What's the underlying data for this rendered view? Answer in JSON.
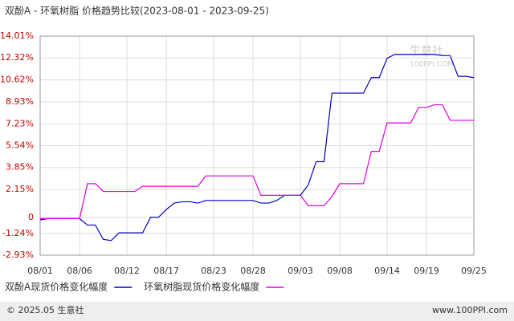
{
  "chart_data": {
    "type": "line",
    "title": "双酚A - 环氧树脂 价格趋势比较(2023-08-01 - 2023-09-25)",
    "x": [
      "08/01",
      "08/02",
      "08/03",
      "08/04",
      "08/05",
      "08/06",
      "08/07",
      "08/08",
      "08/09",
      "08/10",
      "08/11",
      "08/12",
      "08/13",
      "08/14",
      "08/15",
      "08/16",
      "08/17",
      "08/18",
      "08/19",
      "08/20",
      "08/21",
      "08/22",
      "08/23",
      "08/24",
      "08/25",
      "08/26",
      "08/27",
      "08/28",
      "08/29",
      "08/30",
      "08/31",
      "09/01",
      "09/02",
      "09/03",
      "09/04",
      "09/05",
      "09/06",
      "09/07",
      "09/08",
      "09/09",
      "09/10",
      "09/11",
      "09/12",
      "09/13",
      "09/14",
      "09/15",
      "09/16",
      "09/17",
      "09/18",
      "09/19",
      "09/20",
      "09/21",
      "09/22",
      "09/23",
      "09/24",
      "09/25"
    ],
    "xticks": [
      "08/01",
      "08/06",
      "08/12",
      "08/17",
      "08/23",
      "08/28",
      "09/03",
      "09/08",
      "09/14",
      "09/19",
      "09/25"
    ],
    "series": [
      {
        "name": "双酚A现货价格变化幅度",
        "color": "#0000cc",
        "values": [
          -0.2,
          -0.1,
          -0.1,
          -0.1,
          -0.1,
          -0.1,
          -0.6,
          -0.6,
          -1.7,
          -1.8,
          -1.2,
          -1.2,
          -1.2,
          -1.2,
          0,
          0,
          0.6,
          1.1,
          1.2,
          1.2,
          1.1,
          1.3,
          1.3,
          1.3,
          1.3,
          1.3,
          1.3,
          1.3,
          1.1,
          1.1,
          1.3,
          1.7,
          1.7,
          1.7,
          2.5,
          4.3,
          4.3,
          9.6,
          9.6,
          9.6,
          9.6,
          9.6,
          10.8,
          10.8,
          12.3,
          12.6,
          12.6,
          12.6,
          12.6,
          12.6,
          12.6,
          12.5,
          12.5,
          10.9,
          10.9,
          10.8
        ]
      },
      {
        "name": "环氧树脂现货价格变化幅度",
        "color": "#e000e0",
        "values": [
          -0.1,
          -0.1,
          -0.1,
          -0.1,
          -0.1,
          -0.1,
          2.6,
          2.6,
          2.0,
          2.0,
          2.0,
          2.0,
          2.0,
          2.4,
          2.4,
          2.4,
          2.4,
          2.4,
          2.4,
          2.4,
          2.4,
          3.2,
          3.2,
          3.2,
          3.2,
          3.2,
          3.2,
          3.2,
          1.7,
          1.7,
          1.7,
          1.7,
          1.7,
          1.7,
          0.9,
          0.9,
          0.9,
          1.6,
          2.6,
          2.6,
          2.6,
          2.6,
          5.1,
          5.1,
          7.3,
          7.3,
          7.3,
          7.3,
          8.5,
          8.5,
          8.7,
          8.7,
          7.5,
          7.5,
          7.5,
          7.5
        ]
      }
    ],
    "ylim": [
      -2.93,
      14.01
    ],
    "yticks": [
      {
        "value": -2.93,
        "label": "-2.93%"
      },
      {
        "value": -1.24,
        "label": "-1.24%"
      },
      0,
      {
        "value": 2.15,
        "label": "2.15%"
      },
      {
        "value": 3.85,
        "label": "3.85%"
      },
      {
        "value": 5.54,
        "label": "5.54%"
      },
      {
        "value": 7.23,
        "label": "7.23%"
      },
      {
        "value": 8.93,
        "label": "8.93%"
      },
      {
        "value": 10.62,
        "label": "10.62%"
      },
      {
        "value": 12.32,
        "label": "12.32%"
      },
      {
        "value": 14.01,
        "label": "14.01%"
      }
    ],
    "grid": true,
    "watermark": {
      "name": "生意社",
      "url": "100PPI.COM"
    },
    "footer": {
      "left": "© 2025.05 生意社",
      "right": "www.100PPI.com"
    }
  }
}
